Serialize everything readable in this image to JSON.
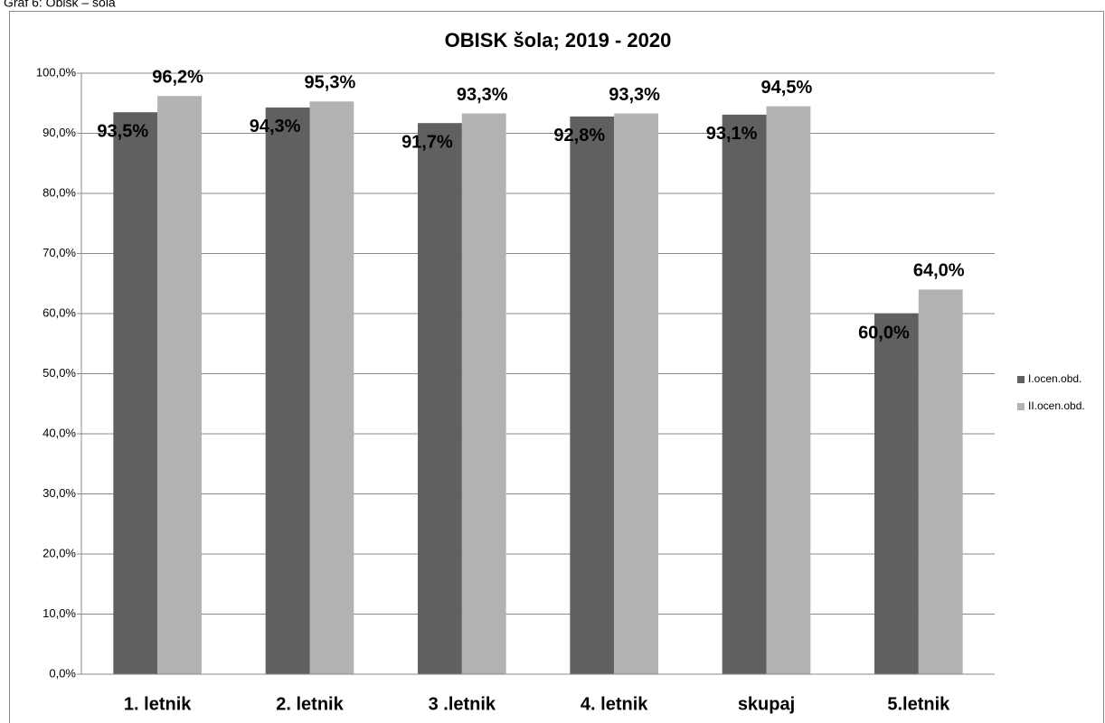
{
  "caption": "Graf 6: Obisk – šola",
  "chart_data": {
    "type": "bar",
    "title": "OBISK šola; 2019 - 2020",
    "categories": [
      "1. letnik",
      "2. letnik",
      "3 .letnik",
      "4. letnik",
      "skupaj",
      "5.letnik"
    ],
    "series": [
      {
        "name": "I.ocen.obd.",
        "color": "#606060",
        "values": [
          93.5,
          94.3,
          91.7,
          92.8,
          93.1,
          60.0
        ],
        "value_labels": [
          "93,5%",
          "94,3%",
          "91,7%",
          "92,8%",
          "93,1%",
          "60,0%"
        ]
      },
      {
        "name": "II.ocen.obd.",
        "color": "#b2b2b2",
        "values": [
          96.2,
          95.3,
          93.3,
          93.3,
          94.5,
          64.0
        ],
        "value_labels": [
          "96,2%",
          "95,3%",
          "93,3%",
          "93,3%",
          "94,5%",
          "64,0%"
        ]
      }
    ],
    "ylim": [
      0,
      100
    ],
    "yticks": [
      {
        "value": 0,
        "label": "0,0%"
      },
      {
        "value": 10,
        "label": "10,0%"
      },
      {
        "value": 20,
        "label": "20,0%"
      },
      {
        "value": 30,
        "label": "30,0%"
      },
      {
        "value": 40,
        "label": "40,0%"
      },
      {
        "value": 50,
        "label": "50,0%"
      },
      {
        "value": 60,
        "label": "60,0%"
      },
      {
        "value": 70,
        "label": "70,0%"
      },
      {
        "value": 80,
        "label": "80,0%"
      },
      {
        "value": 90,
        "label": "90,0%"
      },
      {
        "value": 100,
        "label": "100,0%"
      }
    ],
    "grid": true,
    "legend": "right"
  }
}
